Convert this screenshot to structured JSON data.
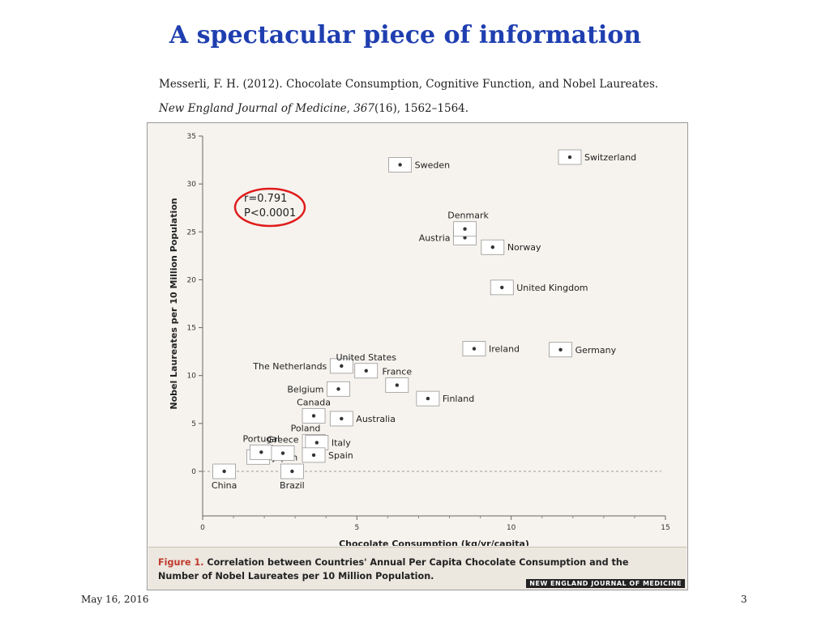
{
  "slide": {
    "title": "A spectacular piece of information",
    "citation_line1": "Messerli, F. H. (2012). Chocolate Consumption, Cognitive Function, and Nobel Laureates.",
    "citation_journal": "New England Journal of Medicine",
    "citation_volume": "367",
    "citation_rest": "(16), 1562–1564.",
    "date": "May 16, 2016",
    "page_number": "3"
  },
  "figure": {
    "caption_label": "Figure 1.",
    "caption_text": "Correlation between Countries' Annual Per Capita Chocolate Consumption and the Number of Nobel Laureates per 10 Million Population.",
    "journal_mark": "NEW ENGLAND JOURNAL OF MEDICINE"
  },
  "chart_data": {
    "type": "scatter",
    "xlabel": "Chocolate Consumption (kg/yr/capita)",
    "ylabel": "Nobel Laureates per 10 Million Population",
    "xlim": [
      0,
      15
    ],
    "ylim": [
      0,
      35
    ],
    "xticks": [
      0,
      5,
      10,
      15
    ],
    "yticks": [
      0,
      5,
      10,
      15,
      20,
      25,
      30,
      35
    ],
    "grid": false,
    "annotation": [
      "r=0.791",
      "P<0.0001"
    ],
    "annotation_highlight_color": "#e01b1b",
    "points": [
      {
        "country": "China",
        "x": 0.7,
        "y": 0.0
      },
      {
        "country": "Japan",
        "x": 1.8,
        "y": 1.5
      },
      {
        "country": "Brazil",
        "x": 2.9,
        "y": 0.0
      },
      {
        "country": "Portugal",
        "x": 1.9,
        "y": 2.0
      },
      {
        "country": "Greece",
        "x": 2.6,
        "y": 1.9
      },
      {
        "country": "Poland",
        "x": 3.6,
        "y": 3.1
      },
      {
        "country": "Italy",
        "x": 3.7,
        "y": 3.0
      },
      {
        "country": "Spain",
        "x": 3.6,
        "y": 1.7
      },
      {
        "country": "Canada",
        "x": 3.6,
        "y": 5.8
      },
      {
        "country": "Australia",
        "x": 4.5,
        "y": 5.5
      },
      {
        "country": "Belgium",
        "x": 4.4,
        "y": 8.6
      },
      {
        "country": "The Netherlands",
        "x": 4.5,
        "y": 11.0
      },
      {
        "country": "United States",
        "x": 5.3,
        "y": 10.5
      },
      {
        "country": "France",
        "x": 6.3,
        "y": 9.0
      },
      {
        "country": "Finland",
        "x": 7.3,
        "y": 7.6
      },
      {
        "country": "Ireland",
        "x": 8.8,
        "y": 12.8
      },
      {
        "country": "Germany",
        "x": 11.6,
        "y": 12.7
      },
      {
        "country": "United Kingdom",
        "x": 9.7,
        "y": 19.2
      },
      {
        "country": "Norway",
        "x": 9.4,
        "y": 23.4
      },
      {
        "country": "Austria",
        "x": 8.5,
        "y": 24.4
      },
      {
        "country": "Denmark",
        "x": 8.5,
        "y": 25.3
      },
      {
        "country": "Sweden",
        "x": 6.4,
        "y": 32.0
      },
      {
        "country": "Switzerland",
        "x": 11.9,
        "y": 32.8
      }
    ]
  }
}
